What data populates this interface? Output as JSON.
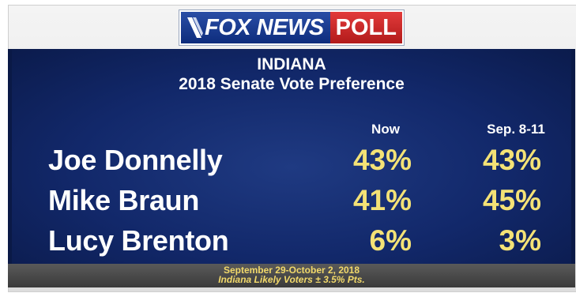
{
  "brand": {
    "name_part": "FOX NEWS",
    "poll_part": "POLL",
    "colors": {
      "blue": "#0d2c7c",
      "red": "#c52222",
      "gold": "#f4e276"
    }
  },
  "chart_data": {
    "type": "table",
    "title": "INDIANA",
    "subtitle": "2018 Senate Vote Preference",
    "columns": [
      "Now",
      "Sep. 8-11"
    ],
    "rows": [
      {
        "name": "Joe Donnelly",
        "now": "43%",
        "sep": "43%",
        "values": [
          43,
          43
        ]
      },
      {
        "name": "Mike Braun",
        "now": "41%",
        "sep": "45%",
        "values": [
          41,
          45
        ]
      },
      {
        "name": "Lucy Brenton",
        "now": "6%",
        "sep": "3%",
        "values": [
          6,
          3
        ]
      }
    ],
    "units": "%"
  },
  "footer": {
    "dates": "September 29-October 2, 2018",
    "sample": "Indiana Likely Voters ± 3.5% Pts."
  }
}
